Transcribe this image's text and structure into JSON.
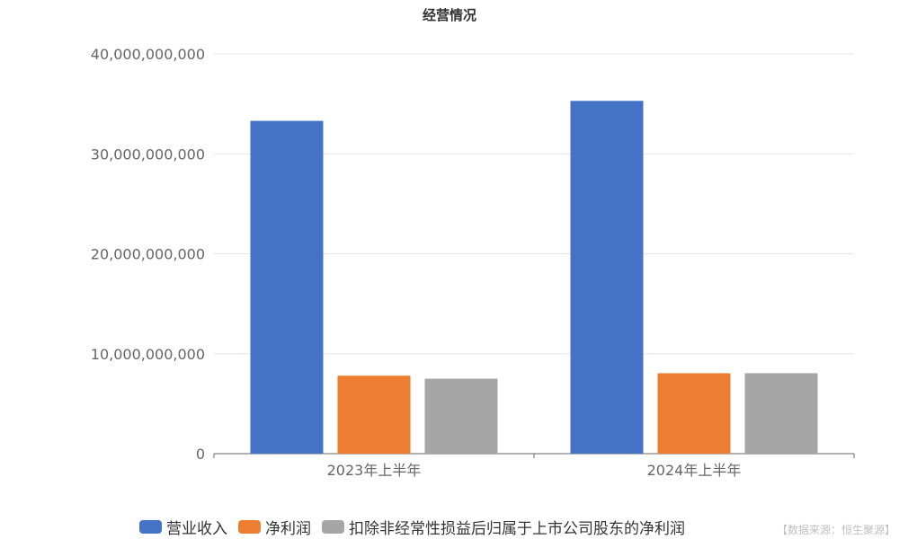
{
  "chart_data": {
    "type": "bar",
    "title": "经营情况",
    "categories": [
      "2023年上半年",
      "2024年上半年"
    ],
    "series": [
      {
        "name": "营业收入",
        "color": "#4472c4",
        "values": [
          33300000000,
          35300000000
        ]
      },
      {
        "name": "净利润",
        "color": "#ed7d31",
        "values": [
          7800000000,
          8050000000
        ]
      },
      {
        "name": "扣除非经常性损益后归属于上市公司股东的净利润",
        "color": "#a5a5a5",
        "values": [
          7500000000,
          8050000000
        ]
      }
    ],
    "yticks": [
      "0",
      "10,000,000,000",
      "20,000,000,000",
      "30,000,000,000",
      "40,000,000,000"
    ],
    "ylim": [
      0,
      40000000000
    ],
    "grid": true,
    "legend_position": "bottom"
  },
  "source_note": "【数据来源：恒生聚源】"
}
